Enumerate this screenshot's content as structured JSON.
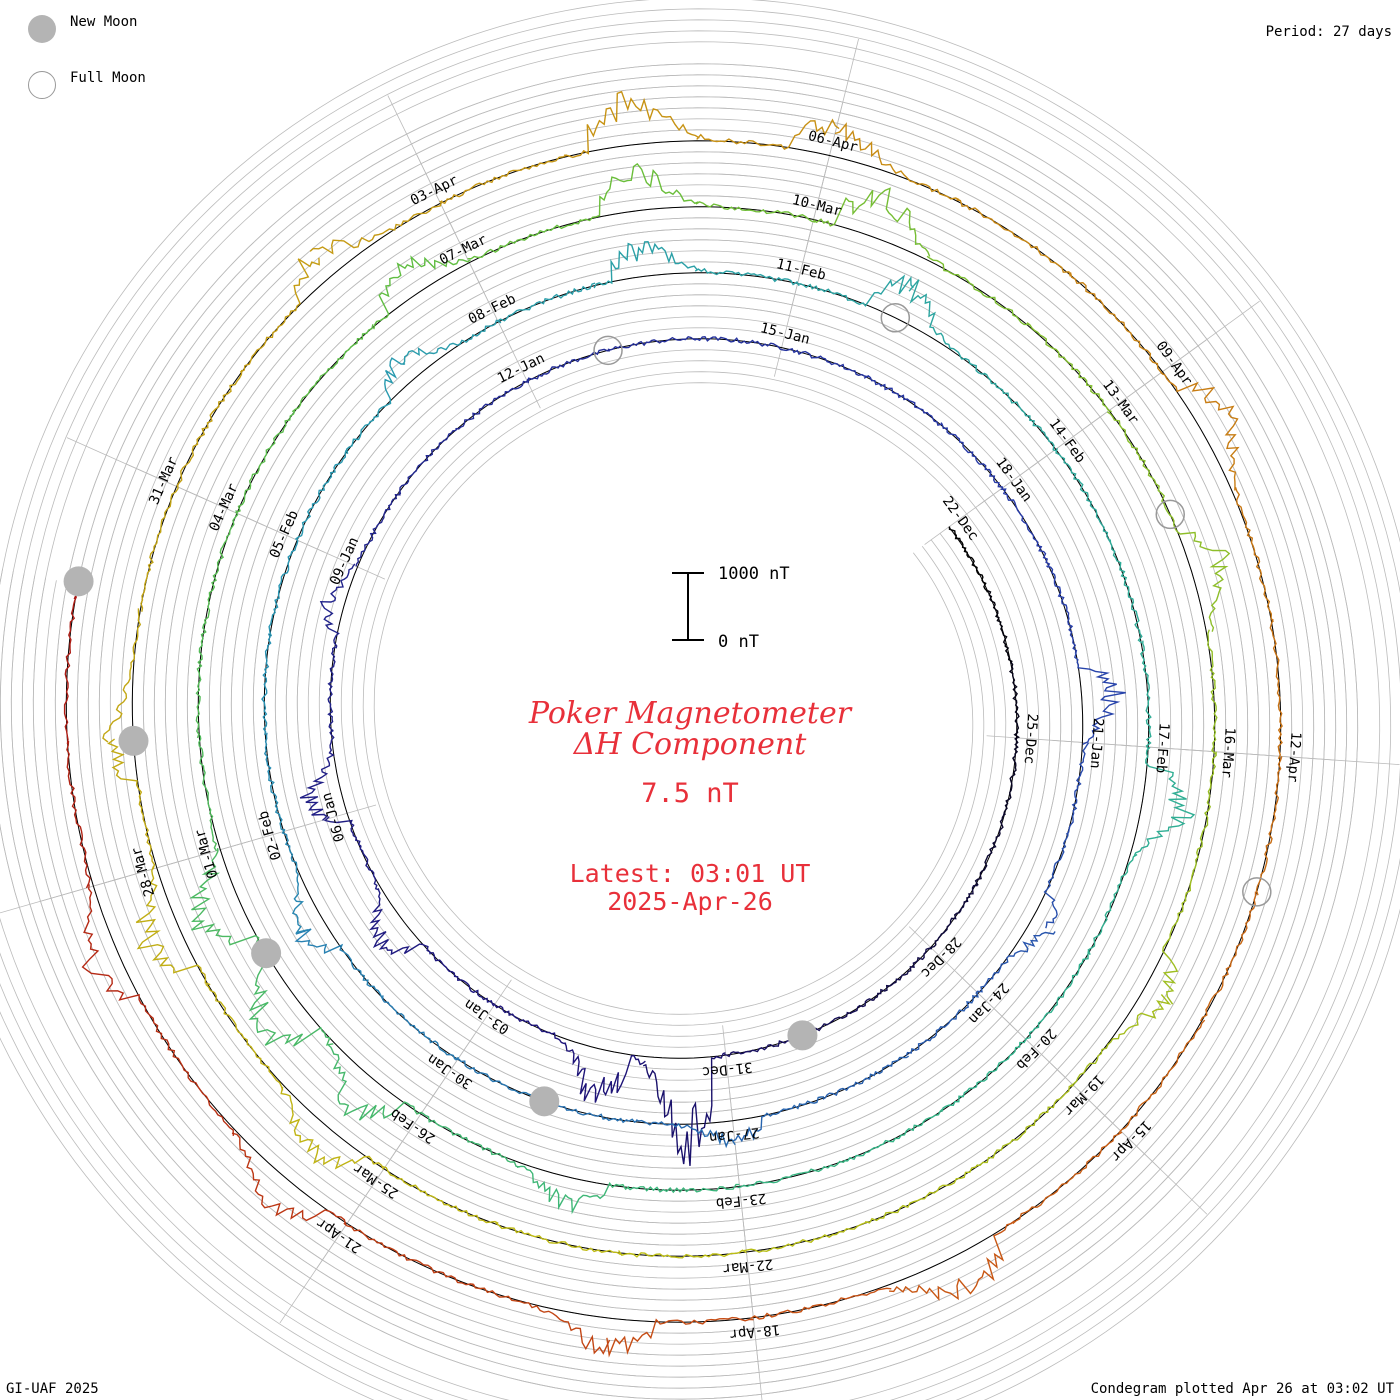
{
  "legend": {
    "new_moon": "New Moon",
    "full_moon": "Full Moon"
  },
  "period": "Period: 27 days",
  "footer": {
    "left": "GI-UAF 2025",
    "right": "Condegram plotted Apr 26 at 03:02 UT"
  },
  "scale": {
    "top": "1000 nT",
    "bottom": "0 nT"
  },
  "colors": {
    "title": "#e8303a",
    "new_moon": "#b4b4b4",
    "full_moon_outline": "#999999",
    "grid": "#bbbbbb",
    "baseline": "#000000"
  },
  "chart_data": {
    "type": "line",
    "title": "Poker Magnetometer",
    "subtitle": "ΔH Component",
    "value_text": "7.5 nT",
    "latest_line1": "Latest: 03:01 UT",
    "latest_line2": "2025-Apr-26",
    "period_days": 27,
    "start_date": "2024-12-22",
    "end_date": "2025-04-26",
    "units": "nT",
    "tick_labels": [
      {
        "label": "22-Dec",
        "day": 0
      },
      {
        "label": "25-Dec",
        "day": 3
      },
      {
        "label": "28-Dec",
        "day": 6
      },
      {
        "label": "31-Dec",
        "day": 9
      },
      {
        "label": "03-Jan",
        "day": 12
      },
      {
        "label": "06-Jan",
        "day": 15
      },
      {
        "label": "09-Jan",
        "day": 18
      },
      {
        "label": "12-Jan",
        "day": 21
      },
      {
        "label": "15-Jan",
        "day": 24
      },
      {
        "label": "18-Jan",
        "day": 27
      },
      {
        "label": "21-Jan",
        "day": 30
      },
      {
        "label": "24-Jan",
        "day": 33
      },
      {
        "label": "27-Jan",
        "day": 36
      },
      {
        "label": "30-Jan",
        "day": 39
      },
      {
        "label": "02-Feb",
        "day": 42
      },
      {
        "label": "05-Feb",
        "day": 45
      },
      {
        "label": "08-Feb",
        "day": 48
      },
      {
        "label": "11-Feb",
        "day": 51
      },
      {
        "label": "14-Feb",
        "day": 54
      },
      {
        "label": "17-Feb",
        "day": 57
      },
      {
        "label": "20-Feb",
        "day": 60
      },
      {
        "label": "23-Feb",
        "day": 63
      },
      {
        "label": "26-Feb",
        "day": 66
      },
      {
        "label": "01-Mar",
        "day": 69
      },
      {
        "label": "04-Mar",
        "day": 72
      },
      {
        "label": "07-Mar",
        "day": 75
      },
      {
        "label": "10-Mar",
        "day": 78
      },
      {
        "label": "13-Mar",
        "day": 81
      },
      {
        "label": "16-Mar",
        "day": 84
      },
      {
        "label": "19-Mar",
        "day": 87
      },
      {
        "label": "22-Mar",
        "day": 90
      },
      {
        "label": "25-Mar",
        "day": 93
      },
      {
        "label": "28-Mar",
        "day": 96
      },
      {
        "label": "31-Mar",
        "day": 99
      },
      {
        "label": "03-Apr",
        "day": 102
      },
      {
        "label": "06-Apr",
        "day": 105
      },
      {
        "label": "09-Apr",
        "day": 108
      },
      {
        "label": "12-Apr",
        "day": 111
      },
      {
        "label": "15-Apr",
        "day": 114
      },
      {
        "label": "18-Apr",
        "day": 117
      },
      {
        "label": "21-Apr",
        "day": 120
      }
    ],
    "new_moons": [
      "2024-12-30",
      "2025-01-29",
      "2025-02-28",
      "2025-03-29",
      "2025-04-27"
    ],
    "full_moons": [
      "2025-01-13",
      "2025-02-12",
      "2025-03-14",
      "2025-04-13"
    ],
    "storm_events": [
      {
        "day": 9.5,
        "amplitude": 1200
      },
      {
        "day": 10.5,
        "amplitude": 650
      },
      {
        "day": 13.5,
        "amplitude": 420
      },
      {
        "day": 15.2,
        "amplitude": 500
      },
      {
        "day": 17.5,
        "amplitude": 260
      },
      {
        "day": 29.5,
        "amplitude": 500
      },
      {
        "day": 32.0,
        "amplitude": 300
      },
      {
        "day": 36.0,
        "amplitude": 300
      },
      {
        "day": 41.0,
        "amplitude": 380
      },
      {
        "day": 47.0,
        "amplitude": 350
      },
      {
        "day": 49.5,
        "amplitude": 420
      },
      {
        "day": 52.0,
        "amplitude": 500
      },
      {
        "day": 57.5,
        "amplitude": 600
      },
      {
        "day": 64.5,
        "amplitude": 380
      },
      {
        "day": 66.5,
        "amplitude": 500
      },
      {
        "day": 67.5,
        "amplitude": 700
      },
      {
        "day": 68.5,
        "amplitude": 600
      },
      {
        "day": 74.5,
        "amplitude": 420
      },
      {
        "day": 76.5,
        "amplitude": 550
      },
      {
        "day": 78.5,
        "amplitude": 600
      },
      {
        "day": 82.5,
        "amplitude": 450
      },
      {
        "day": 86.0,
        "amplitude": 350
      },
      {
        "day": 93.5,
        "amplitude": 450
      },
      {
        "day": 95.5,
        "amplitude": 500
      },
      {
        "day": 97.0,
        "amplitude": 350
      },
      {
        "day": 101.0,
        "amplitude": 400
      },
      {
        "day": 103.5,
        "amplitude": 600
      },
      {
        "day": 105.0,
        "amplitude": 450
      },
      {
        "day": 108.5,
        "amplitude": 500
      },
      {
        "day": 115.5,
        "amplitude": 550
      },
      {
        "day": 118.0,
        "amplitude": 420
      },
      {
        "day": 120.5,
        "amplitude": 400
      },
      {
        "day": 122.5,
        "amplitude": 450
      }
    ]
  }
}
